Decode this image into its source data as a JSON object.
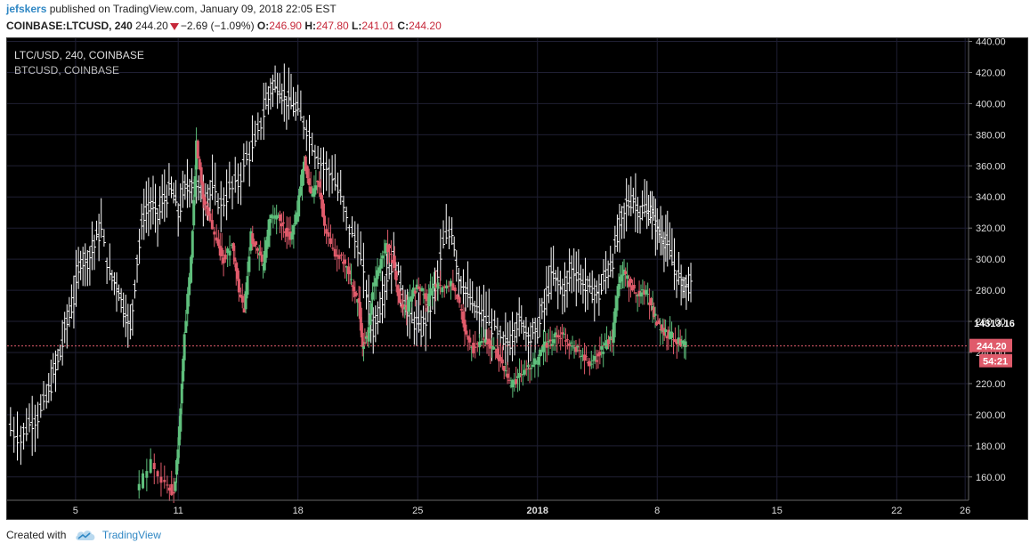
{
  "header": {
    "author": "jefskers",
    "published_text": "published on TradingView.com, January 09, 2018 22:05 EST",
    "symbol": "COINBASE:LTCUSD, 240",
    "last": "244.20",
    "change": "−2.69 (−1.09%)",
    "open_label": "O:",
    "open": "246.90",
    "high_label": "H:",
    "high": "247.80",
    "low_label": "L:",
    "low": "241.01",
    "close_label": "C:",
    "close": "244.20"
  },
  "legend": {
    "main": "LTC/USD, 240, COINBASE",
    "overlay": "BTCUSD, COINBASE"
  },
  "footer": {
    "created_with": "Created with",
    "brand": "TradingView"
  },
  "colors": {
    "up": "#5fbf7c",
    "down": "#e05b6b",
    "overlay": "#ffffff",
    "last_price_line": "#e05b6b",
    "grid": "#1f1f33",
    "axis_text": "#dddddd"
  },
  "chart_data": {
    "type": "candlestick",
    "symbol": "LTC/USD",
    "interval": "240",
    "y_axis": {
      "ticks": [
        "440.00",
        "420.00",
        "400.00",
        "380.00",
        "360.00",
        "340.00",
        "320.00",
        "300.00",
        "280.00",
        "260.00",
        "240.00",
        "220.00",
        "200.00",
        "180.00",
        "160.00"
      ],
      "range": [
        145,
        442
      ]
    },
    "x_axis": {
      "ticks": [
        "5",
        "11",
        "18",
        "25",
        "2018",
        "8",
        "15",
        "22",
        "26"
      ],
      "tick_days": [
        5,
        11,
        18,
        25,
        32,
        39,
        46,
        53,
        57
      ],
      "range_days": [
        1,
        57.2
      ]
    },
    "price_labels": {
      "last_price": "244.20",
      "last_price_value": 244.2,
      "overlay_value": "14313.16",
      "countdown": "54:21"
    },
    "ltc_path": [
      [
        8.6,
        150
      ],
      [
        9.5,
        170
      ],
      [
        10.3,
        155
      ],
      [
        10.8,
        150
      ],
      [
        11.1,
        190
      ],
      [
        11.4,
        250
      ],
      [
        11.8,
        300
      ],
      [
        12.1,
        375
      ],
      [
        12.5,
        340
      ],
      [
        12.8,
        330
      ],
      [
        13.3,
        310
      ],
      [
        13.7,
        300
      ],
      [
        14.2,
        310
      ],
      [
        14.5,
        285
      ],
      [
        14.9,
        265
      ],
      [
        15.3,
        315
      ],
      [
        15.7,
        305
      ],
      [
        16.0,
        295
      ],
      [
        16.4,
        325
      ],
      [
        16.8,
        328
      ],
      [
        17.2,
        320
      ],
      [
        17.6,
        315
      ],
      [
        18.0,
        330
      ],
      [
        18.4,
        365
      ],
      [
        18.8,
        340
      ],
      [
        19.2,
        352
      ],
      [
        19.6,
        320
      ],
      [
        20.1,
        305
      ],
      [
        20.6,
        300
      ],
      [
        21.0,
        290
      ],
      [
        21.3,
        280
      ],
      [
        21.6,
        270
      ],
      [
        21.8,
        245
      ],
      [
        22.1,
        250
      ],
      [
        22.4,
        280
      ],
      [
        22.8,
        295
      ],
      [
        23.2,
        310
      ],
      [
        23.6,
        300
      ],
      [
        24.0,
        270
      ],
      [
        24.4,
        268
      ],
      [
        24.8,
        280
      ],
      [
        25.2,
        282
      ],
      [
        25.6,
        272
      ],
      [
        26.0,
        285
      ],
      [
        26.5,
        280
      ],
      [
        27.0,
        283
      ],
      [
        27.5,
        270
      ],
      [
        27.9,
        250
      ],
      [
        28.3,
        242
      ],
      [
        28.8,
        248
      ],
      [
        29.2,
        246
      ],
      [
        29.6,
        240
      ],
      [
        30.0,
        232
      ],
      [
        30.4,
        220
      ],
      [
        30.8,
        222
      ],
      [
        31.2,
        228
      ],
      [
        31.6,
        230
      ],
      [
        32.0,
        235
      ],
      [
        32.4,
        244
      ],
      [
        32.8,
        246
      ],
      [
        33.2,
        252
      ],
      [
        33.6,
        250
      ],
      [
        34.0,
        246
      ],
      [
        34.4,
        242
      ],
      [
        34.8,
        236
      ],
      [
        35.2,
        232
      ],
      [
        35.6,
        238
      ],
      [
        36.0,
        245
      ],
      [
        36.4,
        248
      ],
      [
        36.8,
        285
      ],
      [
        37.1,
        292
      ],
      [
        37.5,
        282
      ],
      [
        37.9,
        278
      ],
      [
        38.3,
        280
      ],
      [
        38.7,
        270
      ],
      [
        39.0,
        260
      ],
      [
        39.3,
        255
      ],
      [
        39.6,
        252
      ],
      [
        40.0,
        250
      ],
      [
        40.4,
        246
      ],
      [
        40.7,
        244.2
      ]
    ],
    "btc_overlay_points": [
      [
        1.2,
        192
      ],
      [
        1.8,
        185
      ],
      [
        2.3,
        195
      ],
      [
        2.8,
        200
      ],
      [
        3.3,
        210
      ],
      [
        3.7,
        225
      ],
      [
        4.1,
        240
      ],
      [
        4.5,
        260
      ],
      [
        4.9,
        275
      ],
      [
        5.3,
        300
      ],
      [
        5.7,
        300
      ],
      [
        6.1,
        310
      ],
      [
        6.5,
        320
      ],
      [
        7.0,
        290
      ],
      [
        7.4,
        285
      ],
      [
        7.8,
        270
      ],
      [
        8.2,
        255
      ],
      [
        8.6,
        300
      ],
      [
        9.0,
        330
      ],
      [
        9.4,
        335
      ],
      [
        9.8,
        328
      ],
      [
        10.2,
        340
      ],
      [
        10.6,
        345
      ],
      [
        11.0,
        330
      ],
      [
        11.4,
        345
      ],
      [
        11.8,
        350
      ],
      [
        12.2,
        345
      ],
      [
        12.6,
        340
      ],
      [
        13.0,
        345
      ],
      [
        13.5,
        335
      ],
      [
        14.0,
        345
      ],
      [
        14.5,
        350
      ],
      [
        15.0,
        365
      ],
      [
        15.5,
        375
      ],
      [
        16.0,
        395
      ],
      [
        16.4,
        410
      ],
      [
        16.8,
        412
      ],
      [
        17.2,
        405
      ],
      [
        17.6,
        400
      ],
      [
        18.0,
        395
      ],
      [
        18.5,
        385
      ],
      [
        19.0,
        370
      ],
      [
        19.5,
        360
      ],
      [
        20.0,
        355
      ],
      [
        20.5,
        340
      ],
      [
        21.0,
        320
      ],
      [
        21.5,
        310
      ],
      [
        22.0,
        280
      ],
      [
        22.4,
        255
      ],
      [
        22.8,
        270
      ],
      [
        23.2,
        290
      ],
      [
        23.6,
        300
      ],
      [
        24.0,
        285
      ],
      [
        24.4,
        265
      ],
      [
        24.8,
        260
      ],
      [
        25.2,
        255
      ],
      [
        25.6,
        265
      ],
      [
        26.0,
        280
      ],
      [
        26.5,
        310
      ],
      [
        27.0,
        320
      ],
      [
        27.4,
        290
      ],
      [
        27.8,
        280
      ],
      [
        28.2,
        270
      ],
      [
        28.6,
        265
      ],
      [
        29.0,
        262
      ],
      [
        29.5,
        255
      ],
      [
        30.0,
        245
      ],
      [
        30.4,
        248
      ],
      [
        30.8,
        260
      ],
      [
        31.2,
        258
      ],
      [
        31.6,
        250
      ],
      [
        32.0,
        255
      ],
      [
        32.4,
        270
      ],
      [
        32.8,
        290
      ],
      [
        33.2,
        285
      ],
      [
        33.6,
        280
      ],
      [
        34.0,
        295
      ],
      [
        34.4,
        290
      ],
      [
        34.8,
        282
      ],
      [
        35.2,
        280
      ],
      [
        35.6,
        278
      ],
      [
        36.0,
        290
      ],
      [
        36.4,
        300
      ],
      [
        36.8,
        320
      ],
      [
        37.2,
        335
      ],
      [
        37.6,
        340
      ],
      [
        38.0,
        330
      ],
      [
        38.4,
        332
      ],
      [
        38.7,
        330
      ],
      [
        39.0,
        320
      ],
      [
        39.3,
        315
      ],
      [
        39.6,
        310
      ],
      [
        40.0,
        295
      ],
      [
        40.4,
        285
      ],
      [
        40.7,
        284
      ]
    ]
  }
}
